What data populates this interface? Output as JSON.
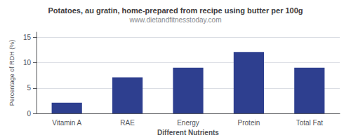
{
  "chart_data": {
    "type": "bar",
    "title": "Potatoes, au gratin, home-prepared from recipe using butter per 100g",
    "subtitle": "www.dietandfitnesstoday.com",
    "xlabel": "Different Nutrients",
    "ylabel": "Percentage of RDH (%)",
    "categories": [
      "Vitamin A",
      "RAE",
      "Energy",
      "Protein",
      "Total Fat"
    ],
    "values": [
      2.1,
      7.1,
      9.0,
      12.1,
      9.0
    ],
    "color": "#2e3f8f",
    "ylim": [
      0,
      16
    ],
    "yticks": [
      0,
      5,
      10,
      15
    ],
    "grid": true
  }
}
